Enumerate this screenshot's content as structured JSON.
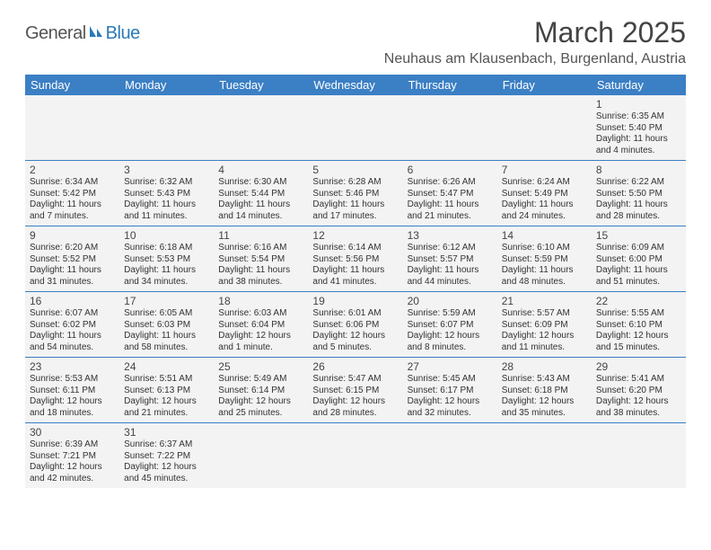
{
  "brand": {
    "part1": "General",
    "part2": "Blue"
  },
  "title": "March 2025",
  "location": "Neuhaus am Klausenbach, Burgenland, Austria",
  "colors": {
    "header_bg": "#3b7fc4",
    "header_fg": "#ffffff",
    "cell_bg": "#f3f3f3",
    "border": "#3b7fc4",
    "title_color": "#444444",
    "text_color": "#333333"
  },
  "dayNames": [
    "Sunday",
    "Monday",
    "Tuesday",
    "Wednesday",
    "Thursday",
    "Friday",
    "Saturday"
  ],
  "weeks": [
    [
      null,
      null,
      null,
      null,
      null,
      null,
      {
        "n": "1",
        "sr": "Sunrise: 6:35 AM",
        "ss": "Sunset: 5:40 PM",
        "d1": "Daylight: 11 hours",
        "d2": "and 4 minutes."
      }
    ],
    [
      {
        "n": "2",
        "sr": "Sunrise: 6:34 AM",
        "ss": "Sunset: 5:42 PM",
        "d1": "Daylight: 11 hours",
        "d2": "and 7 minutes."
      },
      {
        "n": "3",
        "sr": "Sunrise: 6:32 AM",
        "ss": "Sunset: 5:43 PM",
        "d1": "Daylight: 11 hours",
        "d2": "and 11 minutes."
      },
      {
        "n": "4",
        "sr": "Sunrise: 6:30 AM",
        "ss": "Sunset: 5:44 PM",
        "d1": "Daylight: 11 hours",
        "d2": "and 14 minutes."
      },
      {
        "n": "5",
        "sr": "Sunrise: 6:28 AM",
        "ss": "Sunset: 5:46 PM",
        "d1": "Daylight: 11 hours",
        "d2": "and 17 minutes."
      },
      {
        "n": "6",
        "sr": "Sunrise: 6:26 AM",
        "ss": "Sunset: 5:47 PM",
        "d1": "Daylight: 11 hours",
        "d2": "and 21 minutes."
      },
      {
        "n": "7",
        "sr": "Sunrise: 6:24 AM",
        "ss": "Sunset: 5:49 PM",
        "d1": "Daylight: 11 hours",
        "d2": "and 24 minutes."
      },
      {
        "n": "8",
        "sr": "Sunrise: 6:22 AM",
        "ss": "Sunset: 5:50 PM",
        "d1": "Daylight: 11 hours",
        "d2": "and 28 minutes."
      }
    ],
    [
      {
        "n": "9",
        "sr": "Sunrise: 6:20 AM",
        "ss": "Sunset: 5:52 PM",
        "d1": "Daylight: 11 hours",
        "d2": "and 31 minutes."
      },
      {
        "n": "10",
        "sr": "Sunrise: 6:18 AM",
        "ss": "Sunset: 5:53 PM",
        "d1": "Daylight: 11 hours",
        "d2": "and 34 minutes."
      },
      {
        "n": "11",
        "sr": "Sunrise: 6:16 AM",
        "ss": "Sunset: 5:54 PM",
        "d1": "Daylight: 11 hours",
        "d2": "and 38 minutes."
      },
      {
        "n": "12",
        "sr": "Sunrise: 6:14 AM",
        "ss": "Sunset: 5:56 PM",
        "d1": "Daylight: 11 hours",
        "d2": "and 41 minutes."
      },
      {
        "n": "13",
        "sr": "Sunrise: 6:12 AM",
        "ss": "Sunset: 5:57 PM",
        "d1": "Daylight: 11 hours",
        "d2": "and 44 minutes."
      },
      {
        "n": "14",
        "sr": "Sunrise: 6:10 AM",
        "ss": "Sunset: 5:59 PM",
        "d1": "Daylight: 11 hours",
        "d2": "and 48 minutes."
      },
      {
        "n": "15",
        "sr": "Sunrise: 6:09 AM",
        "ss": "Sunset: 6:00 PM",
        "d1": "Daylight: 11 hours",
        "d2": "and 51 minutes."
      }
    ],
    [
      {
        "n": "16",
        "sr": "Sunrise: 6:07 AM",
        "ss": "Sunset: 6:02 PM",
        "d1": "Daylight: 11 hours",
        "d2": "and 54 minutes."
      },
      {
        "n": "17",
        "sr": "Sunrise: 6:05 AM",
        "ss": "Sunset: 6:03 PM",
        "d1": "Daylight: 11 hours",
        "d2": "and 58 minutes."
      },
      {
        "n": "18",
        "sr": "Sunrise: 6:03 AM",
        "ss": "Sunset: 6:04 PM",
        "d1": "Daylight: 12 hours",
        "d2": "and 1 minute."
      },
      {
        "n": "19",
        "sr": "Sunrise: 6:01 AM",
        "ss": "Sunset: 6:06 PM",
        "d1": "Daylight: 12 hours",
        "d2": "and 5 minutes."
      },
      {
        "n": "20",
        "sr": "Sunrise: 5:59 AM",
        "ss": "Sunset: 6:07 PM",
        "d1": "Daylight: 12 hours",
        "d2": "and 8 minutes."
      },
      {
        "n": "21",
        "sr": "Sunrise: 5:57 AM",
        "ss": "Sunset: 6:09 PM",
        "d1": "Daylight: 12 hours",
        "d2": "and 11 minutes."
      },
      {
        "n": "22",
        "sr": "Sunrise: 5:55 AM",
        "ss": "Sunset: 6:10 PM",
        "d1": "Daylight: 12 hours",
        "d2": "and 15 minutes."
      }
    ],
    [
      {
        "n": "23",
        "sr": "Sunrise: 5:53 AM",
        "ss": "Sunset: 6:11 PM",
        "d1": "Daylight: 12 hours",
        "d2": "and 18 minutes."
      },
      {
        "n": "24",
        "sr": "Sunrise: 5:51 AM",
        "ss": "Sunset: 6:13 PM",
        "d1": "Daylight: 12 hours",
        "d2": "and 21 minutes."
      },
      {
        "n": "25",
        "sr": "Sunrise: 5:49 AM",
        "ss": "Sunset: 6:14 PM",
        "d1": "Daylight: 12 hours",
        "d2": "and 25 minutes."
      },
      {
        "n": "26",
        "sr": "Sunrise: 5:47 AM",
        "ss": "Sunset: 6:15 PM",
        "d1": "Daylight: 12 hours",
        "d2": "and 28 minutes."
      },
      {
        "n": "27",
        "sr": "Sunrise: 5:45 AM",
        "ss": "Sunset: 6:17 PM",
        "d1": "Daylight: 12 hours",
        "d2": "and 32 minutes."
      },
      {
        "n": "28",
        "sr": "Sunrise: 5:43 AM",
        "ss": "Sunset: 6:18 PM",
        "d1": "Daylight: 12 hours",
        "d2": "and 35 minutes."
      },
      {
        "n": "29",
        "sr": "Sunrise: 5:41 AM",
        "ss": "Sunset: 6:20 PM",
        "d1": "Daylight: 12 hours",
        "d2": "and 38 minutes."
      }
    ],
    [
      {
        "n": "30",
        "sr": "Sunrise: 6:39 AM",
        "ss": "Sunset: 7:21 PM",
        "d1": "Daylight: 12 hours",
        "d2": "and 42 minutes."
      },
      {
        "n": "31",
        "sr": "Sunrise: 6:37 AM",
        "ss": "Sunset: 7:22 PM",
        "d1": "Daylight: 12 hours",
        "d2": "and 45 minutes."
      },
      null,
      null,
      null,
      null,
      null
    ]
  ]
}
